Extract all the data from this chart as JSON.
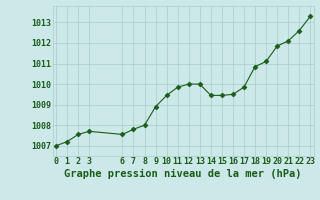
{
  "x": [
    0,
    1,
    2,
    3,
    6,
    7,
    8,
    9,
    10,
    11,
    12,
    13,
    14,
    15,
    16,
    17,
    18,
    19,
    20,
    21,
    22,
    23
  ],
  "y": [
    1007.0,
    1007.2,
    1007.55,
    1007.7,
    1007.55,
    1007.8,
    1008.0,
    1008.9,
    1009.45,
    1009.85,
    1010.0,
    1010.0,
    1009.45,
    1009.45,
    1009.5,
    1009.85,
    1010.85,
    1011.1,
    1011.85,
    1012.1,
    1012.6,
    1013.3
  ],
  "line_color": "#1a5c1a",
  "marker": "D",
  "marker_size": 2.5,
  "bg_color": "#cce8e8",
  "grid_color": "#aacccc",
  "title": "Graphe pression niveau de la mer (hPa)",
  "ylim": [
    1006.5,
    1013.8
  ],
  "yticks": [
    1007,
    1008,
    1009,
    1010,
    1011,
    1012,
    1013
  ],
  "xticks": [
    0,
    1,
    2,
    3,
    6,
    7,
    8,
    9,
    10,
    11,
    12,
    13,
    14,
    15,
    16,
    17,
    18,
    19,
    20,
    21,
    22,
    23
  ],
  "xlim": [
    -0.3,
    23.3
  ],
  "title_fontsize": 7.5,
  "tick_fontsize": 6,
  "title_color": "#1a5c1a",
  "tick_color": "#1a5c1a"
}
